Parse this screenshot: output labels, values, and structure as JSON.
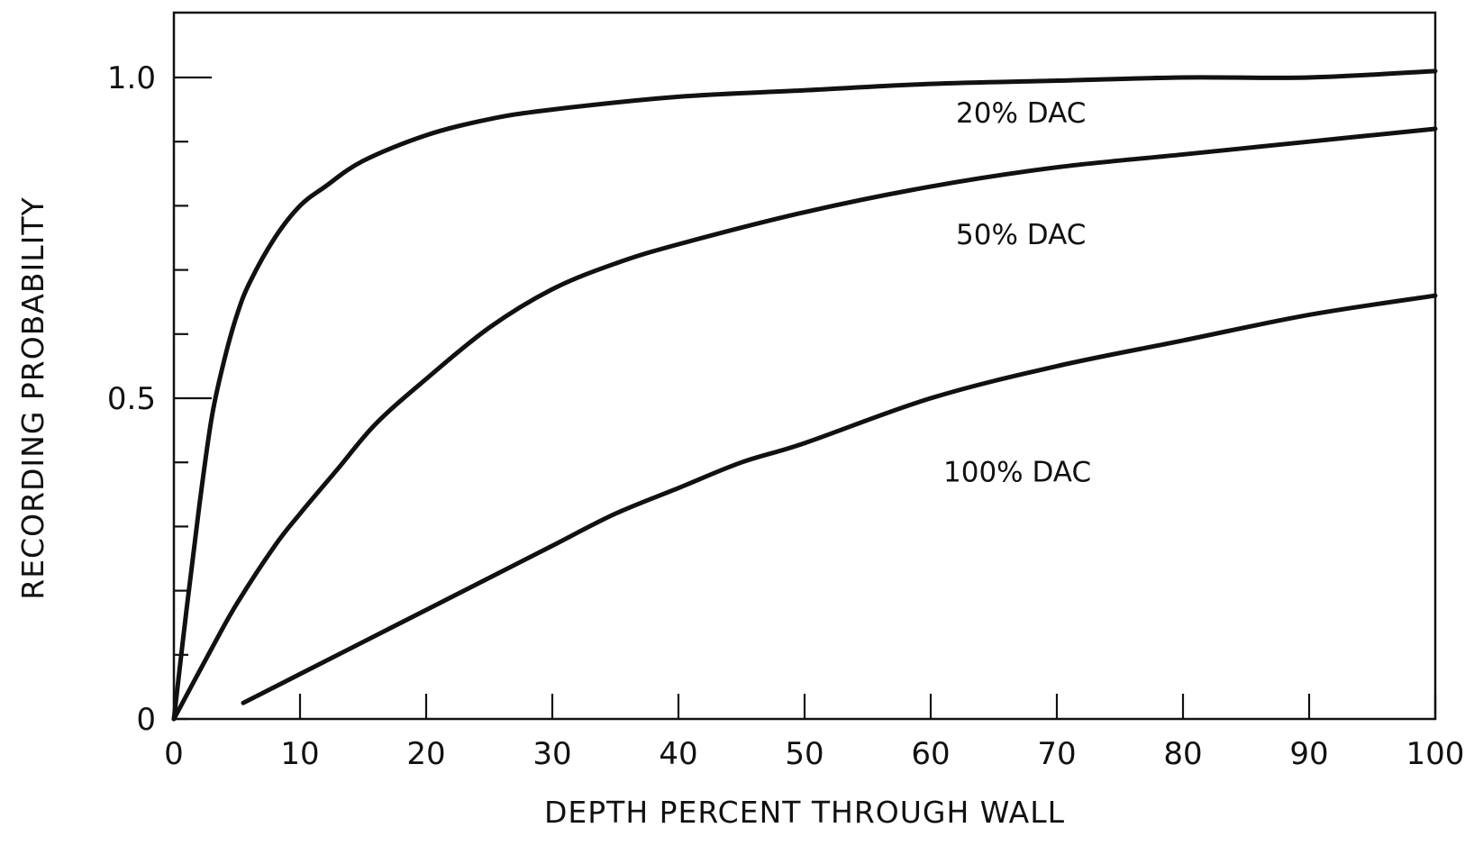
{
  "chart_data": {
    "type": "line",
    "title": "",
    "xlabel": "DEPTH PERCENT THROUGH WALL",
    "ylabel": "RECORDING PROBABILITY",
    "xlim": [
      0,
      100
    ],
    "ylim": [
      0,
      1.1
    ],
    "x_ticks": [
      0,
      10,
      20,
      30,
      40,
      50,
      60,
      70,
      80,
      90,
      100
    ],
    "x_tick_labels": [
      "0",
      "10",
      "20",
      "30",
      "40",
      "50",
      "60",
      "70",
      "80",
      "90",
      "100"
    ],
    "y_ticks": [
      0,
      0.1,
      0.2,
      0.3,
      0.4,
      0.5,
      0.6,
      0.7,
      0.8,
      0.9,
      1.0
    ],
    "y_tick_labels": [
      {
        "value": 0,
        "label": "0"
      },
      {
        "value": 0.5,
        "label": "0.5"
      },
      {
        "value": 1.0,
        "label": "1.0"
      }
    ],
    "grid": false,
    "legend": "none",
    "series": [
      {
        "name": "20% DAC",
        "x": [
          0,
          1,
          2,
          3,
          4,
          5,
          6,
          8,
          10,
          12,
          15,
          20,
          25,
          30,
          40,
          50,
          60,
          70,
          80,
          90,
          100
        ],
        "y": [
          0.0,
          0.17,
          0.33,
          0.47,
          0.56,
          0.63,
          0.68,
          0.75,
          0.8,
          0.83,
          0.87,
          0.91,
          0.935,
          0.95,
          0.97,
          0.98,
          0.99,
          0.995,
          1.0,
          1.0,
          1.01
        ],
        "annotation": {
          "text": "20% DAC",
          "x": 62,
          "y": 0.93
        }
      },
      {
        "name": "50% DAC",
        "x": [
          0,
          3,
          5,
          8,
          10,
          13,
          16,
          20,
          25,
          30,
          35,
          40,
          50,
          60,
          70,
          80,
          90,
          100
        ],
        "y": [
          0.0,
          0.11,
          0.18,
          0.27,
          0.32,
          0.39,
          0.46,
          0.53,
          0.61,
          0.67,
          0.71,
          0.74,
          0.79,
          0.83,
          0.86,
          0.88,
          0.9,
          0.92
        ],
        "annotation": {
          "text": "50% DAC",
          "x": 62,
          "y": 0.74
        }
      },
      {
        "name": "100% DAC",
        "x": [
          5.5,
          10,
          15,
          20,
          25,
          30,
          35,
          40,
          45,
          50,
          60,
          70,
          80,
          90,
          100
        ],
        "y": [
          0.025,
          0.07,
          0.12,
          0.17,
          0.22,
          0.27,
          0.32,
          0.36,
          0.4,
          0.43,
          0.5,
          0.55,
          0.59,
          0.63,
          0.66
        ],
        "annotation": {
          "text": "100% DAC",
          "x": 61,
          "y": 0.37
        }
      }
    ]
  }
}
